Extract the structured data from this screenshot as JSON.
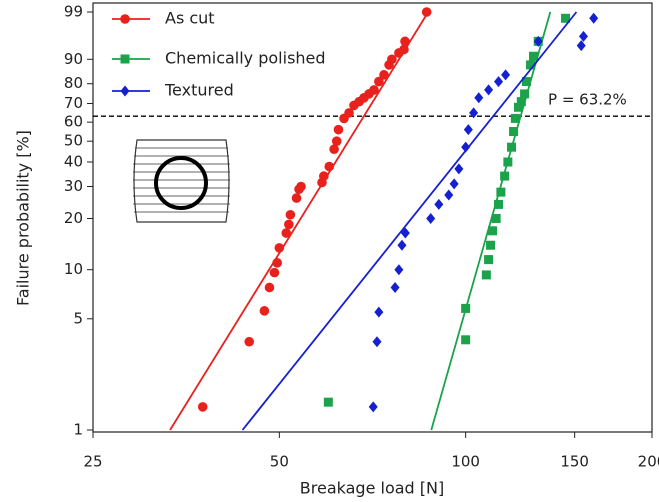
{
  "chart_data": {
    "type": "scatter",
    "xlabel": "Breakage load [N]",
    "ylabel": "Failure probability [%]",
    "xscale": "log",
    "yscale": "weibull",
    "xlim": [
      25,
      200
    ],
    "xticks": [
      25,
      50,
      100,
      150,
      200
    ],
    "ylim": [
      1,
      99
    ],
    "yticks": [
      1,
      5,
      10,
      20,
      30,
      40,
      50,
      60,
      70,
      80,
      90,
      99
    ],
    "legend": "upper left",
    "hline": {
      "value": 63.2,
      "label": "P = 63.2%"
    },
    "series": [
      {
        "name": "As cut",
        "color": "#e8211c",
        "marker": "circle",
        "x": [
          37.6,
          44.7,
          47.3,
          48.2,
          49.1,
          49.6,
          50,
          51.3,
          51.8,
          52.1,
          53.3,
          53.8,
          54.2,
          58.6,
          59,
          60.2,
          61.3,
          61.9,
          62.3,
          63.6,
          64.8,
          66,
          67.3,
          68.5,
          69.8,
          71.1,
          72.4,
          73.8,
          75.2,
          76,
          78,
          79.5,
          79.8,
          86.5
        ],
        "y": [
          1.4,
          3.6,
          5.6,
          7.8,
          9.6,
          11,
          13.5,
          16.5,
          18.5,
          21,
          26,
          29,
          30,
          31.5,
          34,
          38,
          46,
          50,
          56,
          62,
          65,
          69,
          71,
          73,
          75,
          77,
          81,
          84,
          88,
          90,
          92,
          93,
          95,
          99
        ],
        "fit_x": [
          33.3,
          87
        ],
        "fit_y": [
          1,
          99
        ]
      },
      {
        "name": "Chemically polished",
        "color": "#1aa34a",
        "marker": "square",
        "x": [
          60,
          100,
          100,
          108,
          108.9,
          109.7,
          110.5,
          112,
          113,
          114,
          115.6,
          117,
          118.6,
          119.5,
          120.3,
          121.7,
          123,
          124.5,
          125.4,
          127.3,
          128.7,
          131,
          145
        ],
        "y": [
          1.5,
          3.7,
          5.8,
          9.3,
          11.5,
          14,
          17,
          20,
          24,
          28,
          34,
          40,
          47,
          55,
          62,
          68,
          71,
          75,
          81,
          88,
          91,
          95,
          98.5
        ],
        "fit_x": [
          88,
          137
        ],
        "fit_y": [
          1,
          99
        ]
      },
      {
        "name": "Textured",
        "color": "#1520d0",
        "marker": "diamond",
        "x": [
          70.9,
          71.9,
          72.4,
          76.9,
          78,
          78.9,
          79.9,
          87.8,
          90.5,
          93.9,
          95.8,
          97.5,
          100,
          101,
          103,
          105,
          108.9,
          113,
          116,
          131,
          153.7,
          155,
          161
        ],
        "y": [
          1.4,
          3.6,
          5.5,
          7.8,
          10,
          14,
          16.5,
          20,
          24,
          27,
          31,
          37,
          47,
          56,
          65,
          73,
          77,
          81,
          84,
          95,
          94,
          96,
          98.5
        ],
        "fit_x": [
          43.6,
          151
        ],
        "fit_y": [
          1,
          99
        ]
      }
    ]
  }
}
